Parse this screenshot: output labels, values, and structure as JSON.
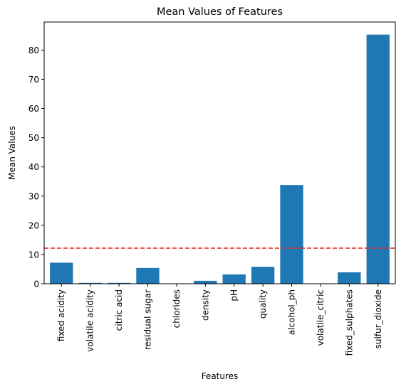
{
  "chart_data": {
    "type": "bar",
    "title": "Mean Values of Features",
    "xlabel": "Features",
    "ylabel": "Mean Values",
    "categories": [
      "fixed acidity",
      "volatile acidity",
      "citric acid",
      "residual sugar",
      "chlorides",
      "density",
      "pH",
      "quality",
      "alcohol_ph",
      "volatile_citric",
      "fixed_sulphates",
      "sulfur_dioxide"
    ],
    "values": [
      7.2,
      0.3,
      0.3,
      5.4,
      0.05,
      1.0,
      3.2,
      5.8,
      33.8,
      0.1,
      3.9,
      85.3
    ],
    "reference_line": {
      "value": 12.2,
      "style": "dashed",
      "color": "#e8231f"
    },
    "ylim": [
      0,
      89.6
    ],
    "yticks": [
      0,
      10,
      20,
      30,
      40,
      50,
      60,
      70,
      80
    ],
    "bar_color": "#1f77b4",
    "grid": false,
    "legend": "none"
  }
}
